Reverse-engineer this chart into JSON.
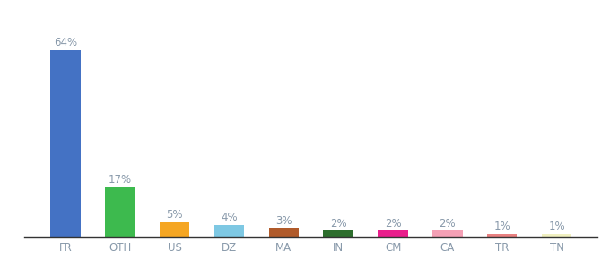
{
  "categories": [
    "FR",
    "OTH",
    "US",
    "DZ",
    "MA",
    "IN",
    "CM",
    "CA",
    "TR",
    "TN"
  ],
  "values": [
    64,
    17,
    5,
    4,
    3,
    2,
    2,
    2,
    1,
    1
  ],
  "labels": [
    "64%",
    "17%",
    "5%",
    "4%",
    "3%",
    "2%",
    "2%",
    "2%",
    "1%",
    "1%"
  ],
  "bar_colors": [
    "#4472c4",
    "#3dba4e",
    "#f5a623",
    "#7ec8e3",
    "#b05a2a",
    "#2d6e2d",
    "#e91e8c",
    "#f4a0b5",
    "#e88080",
    "#f0f0c0"
  ],
  "ylim": [
    0,
    70
  ],
  "background_color": "#ffffff",
  "label_color": "#8899aa",
  "label_fontsize": 8.5,
  "axis_label_fontsize": 8.5,
  "bar_width": 0.55
}
